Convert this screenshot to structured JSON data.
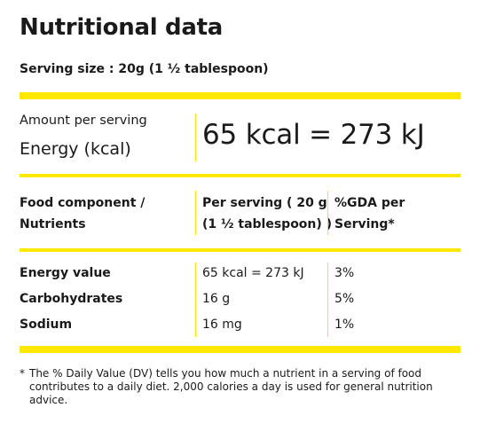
{
  "title": "Nutritional data",
  "serving_size": "Serving size : 20g (1 ½ tablespoon)",
  "amount_per_serving": "Amount per serving",
  "energy_label": "Energy (kcal)",
  "energy_value": "65 kcal = 273 kJ",
  "table": {
    "headers": {
      "component_line1": "Food component /",
      "component_line2": "Nutrients",
      "per_serving_line1": "Per serving ( 20 g",
      "per_serving_line2": "(1 ½ tablespoon) )",
      "gda_line1": "%GDA per",
      "gda_line2": "Serving*"
    },
    "rows": [
      {
        "name": "Energy value",
        "per_serving": "65 kcal = 273 kJ",
        "gda": "3%"
      },
      {
        "name": "Carbohydrates",
        "per_serving": "16 g",
        "gda": "5%"
      },
      {
        "name": "Sodium",
        "per_serving": "16 mg",
        "gda": "1%"
      }
    ]
  },
  "footnote_marker": "*",
  "footnote_text": "The % Daily Value (DV) tells you how much a nutrient in a serving of food contributes to a daily diet. 2,000 calories a day is used for general nutrition advice.",
  "colors": {
    "accent": "#ffe800",
    "text": "#1a1a1a"
  }
}
